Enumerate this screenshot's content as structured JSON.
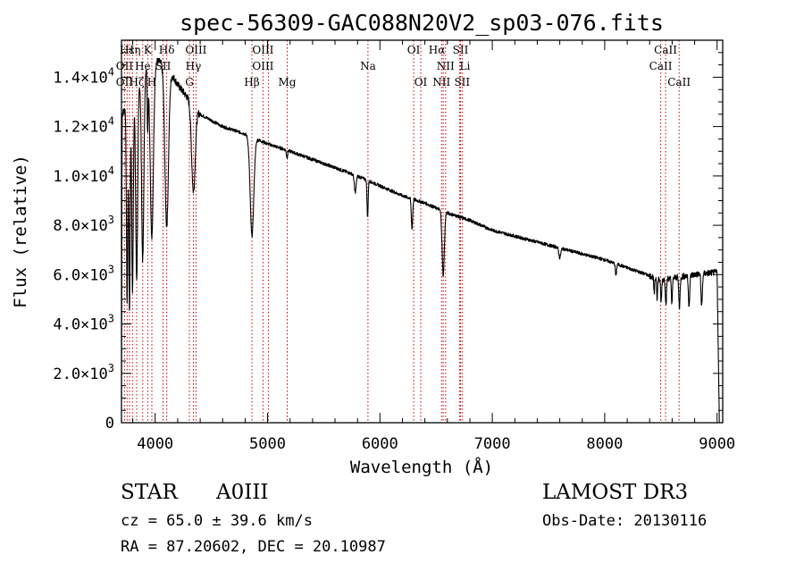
{
  "chart_data": {
    "type": "line",
    "title": "spec-56309-GAC088N20V2_sp03-076.fits",
    "xlabel": "Wavelength (Å)",
    "ylabel": "Flux (relative)",
    "xlim": [
      3700,
      9050
    ],
    "ylim": [
      0,
      15500
    ],
    "x_ticks": [
      {
        "value": 4000,
        "label": "4000"
      },
      {
        "value": 5000,
        "label": "5000"
      },
      {
        "value": 6000,
        "label": "6000"
      },
      {
        "value": 7000,
        "label": "7000"
      },
      {
        "value": 8000,
        "label": "8000"
      },
      {
        "value": 9000,
        "label": "9000"
      }
    ],
    "y_ticks": [
      {
        "value": 0,
        "mantissa": "0",
        "exponent": ""
      },
      {
        "value": 2000,
        "mantissa": "2.0×10",
        "exponent": "3"
      },
      {
        "value": 4000,
        "mantissa": "4.0×10",
        "exponent": "3"
      },
      {
        "value": 6000,
        "mantissa": "6.0×10",
        "exponent": "3"
      },
      {
        "value": 8000,
        "mantissa": "8.0×10",
        "exponent": "3"
      },
      {
        "value": 10000,
        "mantissa": "1.0×10",
        "exponent": "4"
      },
      {
        "value": 12000,
        "mantissa": "1.2×10",
        "exponent": "4"
      },
      {
        "value": 14000,
        "mantissa": "1.4×10",
        "exponent": "4"
      }
    ],
    "continuum": [
      [
        3700,
        1000
      ],
      [
        3705,
        12500
      ],
      [
        3800,
        13300
      ],
      [
        3900,
        14200
      ],
      [
        4000,
        14700
      ],
      [
        4100,
        14500
      ],
      [
        4200,
        13700
      ],
      [
        4400,
        12500
      ],
      [
        4600,
        12000
      ],
      [
        4800,
        11700
      ],
      [
        5000,
        11300
      ],
      [
        5200,
        11000
      ],
      [
        5500,
        10500
      ],
      [
        5800,
        10000
      ],
      [
        6000,
        9600
      ],
      [
        6200,
        9200
      ],
      [
        6400,
        8900
      ],
      [
        6600,
        8500
      ],
      [
        6800,
        8200
      ],
      [
        7000,
        7800
      ],
      [
        7500,
        7200
      ],
      [
        8000,
        6600
      ],
      [
        8500,
        5800
      ],
      [
        8800,
        6000
      ],
      [
        9000,
        6100
      ],
      [
        9020,
        0
      ]
    ],
    "absorption_features": [
      {
        "center": 3750,
        "width": 6,
        "depth": 8000
      },
      {
        "center": 3771,
        "width": 6,
        "depth": 8500
      },
      {
        "center": 3798,
        "width": 7,
        "depth": 8000
      },
      {
        "center": 3835,
        "width": 9,
        "depth": 7800
      },
      {
        "center": 3889,
        "width": 10,
        "depth": 7500
      },
      {
        "center": 3933,
        "width": 4,
        "depth": 2500
      },
      {
        "center": 3970,
        "width": 14,
        "depth": 7000
      },
      {
        "center": 4102,
        "width": 16,
        "depth": 6500
      },
      {
        "center": 4340,
        "width": 16,
        "depth": 3500
      },
      {
        "center": 4861,
        "width": 16,
        "depth": 4000
      },
      {
        "center": 5173,
        "width": 5,
        "depth": 300
      },
      {
        "center": 5780,
        "width": 8,
        "depth": 700
      },
      {
        "center": 5890,
        "width": 5,
        "depth": 1500
      },
      {
        "center": 6285,
        "width": 6,
        "depth": 1200
      },
      {
        "center": 6563,
        "width": 10,
        "depth": 2600
      },
      {
        "center": 7600,
        "width": 8,
        "depth": 400
      },
      {
        "center": 8100,
        "width": 5,
        "depth": 500
      },
      {
        "center": 8440,
        "width": 4,
        "depth": 700
      },
      {
        "center": 8467,
        "width": 4,
        "depth": 800
      },
      {
        "center": 8502,
        "width": 5,
        "depth": 900
      },
      {
        "center": 8545,
        "width": 5,
        "depth": 1000
      },
      {
        "center": 8598,
        "width": 5,
        "depth": 1000
      },
      {
        "center": 8665,
        "width": 6,
        "depth": 1200
      },
      {
        "center": 8750,
        "width": 6,
        "depth": 1200
      },
      {
        "center": 8863,
        "width": 6,
        "depth": 1300
      }
    ],
    "line_markers": [
      {
        "label": "Hε",
        "wavelength": 3750,
        "row": 1,
        "dx": 0
      },
      {
        "label": "Hη",
        "wavelength": 3800,
        "row": 1,
        "dx": 0
      },
      {
        "label": "K",
        "wavelength": 3934,
        "row": 1,
        "dx": 0
      },
      {
        "label": "Hδ",
        "wavelength": 4102,
        "row": 1,
        "dx": 0
      },
      {
        "label": "OIII",
        "wavelength": 4363,
        "row": 1,
        "dx": 0
      },
      {
        "label": "OIII",
        "wavelength": 4959,
        "row": 1,
        "dx": 0
      },
      {
        "label": "OI",
        "wavelength": 6300,
        "row": 1,
        "dx": 0
      },
      {
        "label": "Hα",
        "wavelength": 6563,
        "row": 1,
        "dx": -7
      },
      {
        "label": "SII",
        "wavelength": 6717,
        "row": 1,
        "dx": 0
      },
      {
        "label": "CaII",
        "wavelength": 8542,
        "row": 1,
        "dx": 0
      },
      {
        "label": "OII",
        "wavelength": 3727,
        "row": 2,
        "dx": 0
      },
      {
        "label": "He",
        "wavelength": 3889,
        "row": 2,
        "dx": 0
      },
      {
        "label": "SII",
        "wavelength": 4070,
        "row": 2,
        "dx": 0
      },
      {
        "label": "Hγ",
        "wavelength": 4340,
        "row": 2,
        "dx": 0
      },
      {
        "label": "OIII",
        "wavelength": 5007,
        "row": 2,
        "dx": -6
      },
      {
        "label": "Na",
        "wavelength": 5893,
        "row": 2,
        "dx": 0
      },
      {
        "label": "NII",
        "wavelength": 6584,
        "row": 2,
        "dx": 0
      },
      {
        "label": "Li",
        "wavelength": 6708,
        "row": 2,
        "dx": 6
      },
      {
        "label": "CaII",
        "wavelength": 8498,
        "row": 2,
        "dx": 0
      },
      {
        "label": "OII",
        "wavelength": 3727,
        "row": 3,
        "dx": 0
      },
      {
        "label": "Hζ",
        "wavelength": 3835,
        "row": 3,
        "dx": 0
      },
      {
        "label": "H",
        "wavelength": 3970,
        "row": 3,
        "dx": 0
      },
      {
        "label": "G",
        "wavelength": 4304,
        "row": 3,
        "dx": 0
      },
      {
        "label": "Hβ",
        "wavelength": 4861,
        "row": 3,
        "dx": 0
      },
      {
        "label": "Mg",
        "wavelength": 5175,
        "row": 3,
        "dx": 0
      },
      {
        "label": "OI",
        "wavelength": 6363,
        "row": 3,
        "dx": 0
      },
      {
        "label": "NII",
        "wavelength": 6548,
        "row": 3,
        "dx": 0
      },
      {
        "label": "SII",
        "wavelength": 6731,
        "row": 3,
        "dx": 0
      },
      {
        "label": "CaII",
        "wavelength": 8662,
        "row": 3,
        "dx": 0
      }
    ],
    "marker_lines": [
      3727,
      3750,
      3771,
      3798,
      3835,
      3889,
      3934,
      3970,
      4070,
      4102,
      4304,
      4340,
      4363,
      4861,
      4959,
      5007,
      5175,
      5893,
      6300,
      6363,
      6548,
      6563,
      6584,
      6708,
      6717,
      6731,
      8498,
      8542,
      8662
    ]
  },
  "info": {
    "object_class": "STAR",
    "subclass": "A0III",
    "survey": "LAMOST DR3",
    "redshift": "cz = 65.0 ± 39.6 km/s",
    "obs_date": "Obs-Date: 20130116",
    "coordinates": "RA =  87.20602, DEC =  20.10987"
  },
  "colors": {
    "line": "#000000",
    "marker": "#cc0000",
    "background": "#ffffff"
  }
}
